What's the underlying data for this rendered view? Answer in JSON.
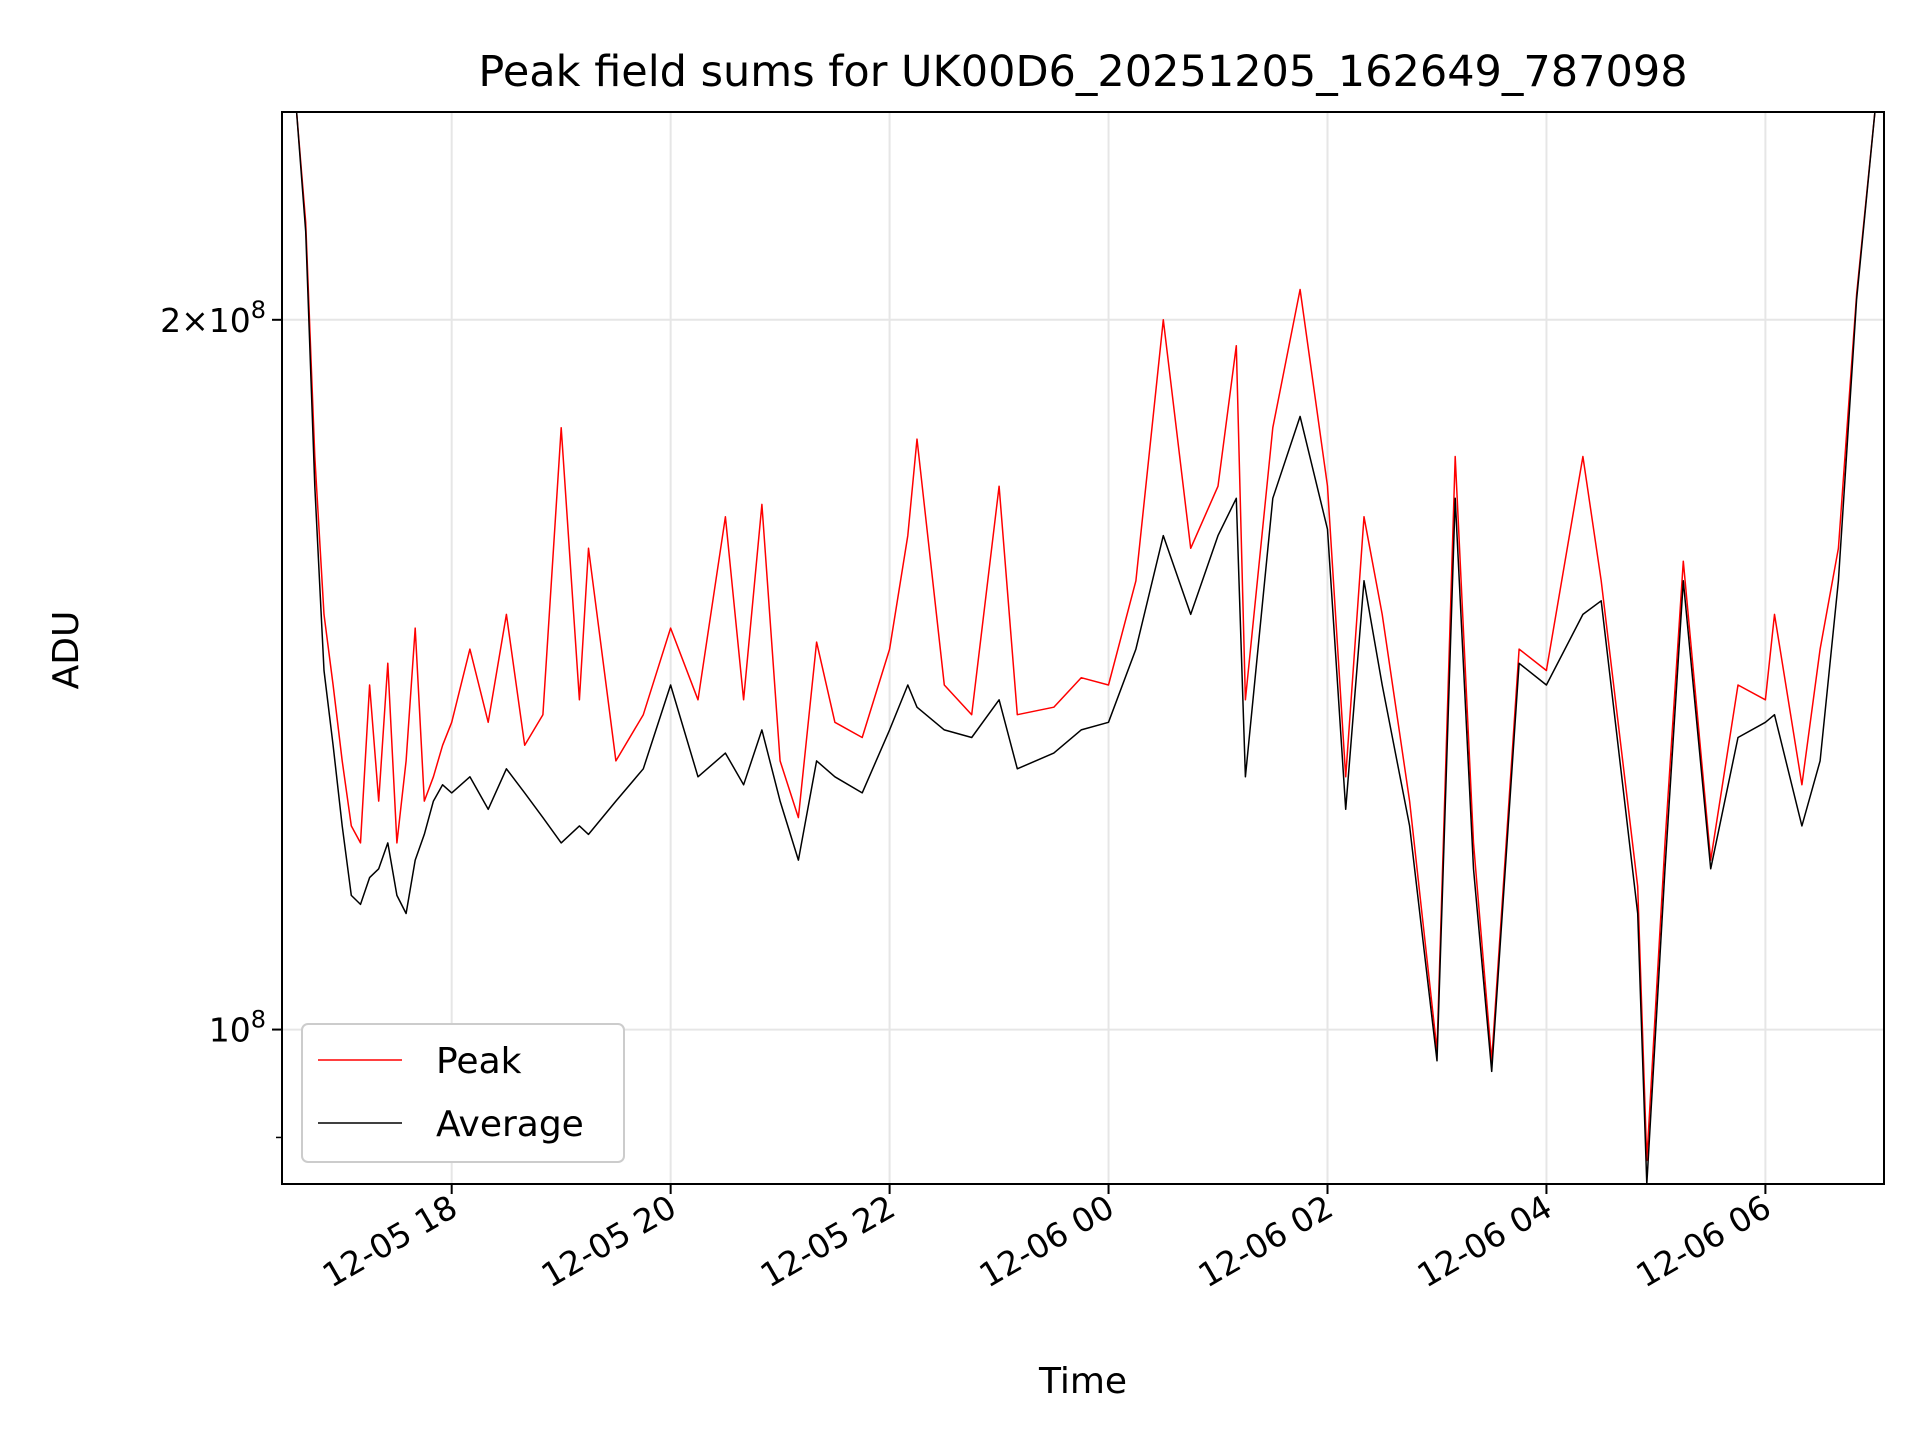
{
  "chart_data": {
    "type": "line",
    "title": "Peak field sums for UK00D6_20251205_162649_787098",
    "xlabel": "Time",
    "ylabel": "ADU",
    "x_range": [
      "2025-12-05 16:27",
      "2025-12-06 07:05"
    ],
    "x_ticks": [
      "12-05 18",
      "12-05 20",
      "12-05 22",
      "12-06 00",
      "12-06 02",
      "12-06 04",
      "12-06 06"
    ],
    "y_scale": "log",
    "ylim": [
      86000000,
      245000000
    ],
    "y_ticks": [
      {
        "value": 100000000,
        "label": "10^8"
      },
      {
        "value": 200000000,
        "label": "2×10^8"
      }
    ],
    "y_minor_ticks": [
      90000000
    ],
    "grid": true,
    "legend": "lower-left",
    "series": [
      {
        "name": "Peak",
        "color": "#ff0000",
        "points": [
          [
            "2025-12-05 16:35",
            245000000
          ],
          [
            "2025-12-05 16:40",
            220000000
          ],
          [
            "2025-12-05 16:45",
            175000000
          ],
          [
            "2025-12-05 16:50",
            150000000
          ],
          [
            "2025-12-05 16:55",
            140000000
          ],
          [
            "2025-12-05 17:00",
            130000000
          ],
          [
            "2025-12-05 17:05",
            122000000
          ],
          [
            "2025-12-05 17:10",
            120000000
          ],
          [
            "2025-12-05 17:15",
            140000000
          ],
          [
            "2025-12-05 17:20",
            125000000
          ],
          [
            "2025-12-05 17:25",
            143000000
          ],
          [
            "2025-12-05 17:30",
            120000000
          ],
          [
            "2025-12-05 17:35",
            130000000
          ],
          [
            "2025-12-05 17:40",
            148000000
          ],
          [
            "2025-12-05 17:45",
            125000000
          ],
          [
            "2025-12-05 17:50",
            128000000
          ],
          [
            "2025-12-05 17:55",
            132000000
          ],
          [
            "2025-12-05 18:00",
            135000000
          ],
          [
            "2025-12-05 18:10",
            145000000
          ],
          [
            "2025-12-05 18:20",
            135000000
          ],
          [
            "2025-12-05 18:30",
            150000000
          ],
          [
            "2025-12-05 18:40",
            132000000
          ],
          [
            "2025-12-05 18:50",
            136000000
          ],
          [
            "2025-12-05 19:00",
            180000000
          ],
          [
            "2025-12-05 19:10",
            138000000
          ],
          [
            "2025-12-05 19:15",
            160000000
          ],
          [
            "2025-12-05 19:30",
            130000000
          ],
          [
            "2025-12-05 19:45",
            136000000
          ],
          [
            "2025-12-05 20:00",
            148000000
          ],
          [
            "2025-12-05 20:15",
            138000000
          ],
          [
            "2025-12-05 20:30",
            165000000
          ],
          [
            "2025-12-05 20:40",
            138000000
          ],
          [
            "2025-12-05 20:50",
            167000000
          ],
          [
            "2025-12-05 21:00",
            130000000
          ],
          [
            "2025-12-05 21:10",
            123000000
          ],
          [
            "2025-12-05 21:20",
            146000000
          ],
          [
            "2025-12-05 21:30",
            135000000
          ],
          [
            "2025-12-05 21:45",
            133000000
          ],
          [
            "2025-12-05 22:00",
            145000000
          ],
          [
            "2025-12-05 22:10",
            162000000
          ],
          [
            "2025-12-05 22:15",
            178000000
          ],
          [
            "2025-12-05 22:30",
            140000000
          ],
          [
            "2025-12-05 22:45",
            136000000
          ],
          [
            "2025-12-05 23:00",
            170000000
          ],
          [
            "2025-12-05 23:10",
            136000000
          ],
          [
            "2025-12-05 23:30",
            137000000
          ],
          [
            "2025-12-05 23:45",
            141000000
          ],
          [
            "2025-12-06 00:00",
            140000000
          ],
          [
            "2025-12-06 00:15",
            155000000
          ],
          [
            "2025-12-06 00:30",
            200000000
          ],
          [
            "2025-12-06 00:45",
            160000000
          ],
          [
            "2025-12-06 01:00",
            170000000
          ],
          [
            "2025-12-06 01:10",
            195000000
          ],
          [
            "2025-12-06 01:15",
            138000000
          ],
          [
            "2025-12-06 01:30",
            180000000
          ],
          [
            "2025-12-06 01:45",
            206000000
          ],
          [
            "2025-12-06 02:00",
            170000000
          ],
          [
            "2025-12-06 02:10",
            128000000
          ],
          [
            "2025-12-06 02:20",
            165000000
          ],
          [
            "2025-12-06 02:30",
            150000000
          ],
          [
            "2025-12-06 02:45",
            125000000
          ],
          [
            "2025-12-06 03:00",
            98000000
          ],
          [
            "2025-12-06 03:10",
            175000000
          ],
          [
            "2025-12-06 03:20",
            120000000
          ],
          [
            "2025-12-06 03:30",
            97000000
          ],
          [
            "2025-12-06 03:45",
            145000000
          ],
          [
            "2025-12-06 04:00",
            142000000
          ],
          [
            "2025-12-06 04:20",
            175000000
          ],
          [
            "2025-12-06 04:30",
            155000000
          ],
          [
            "2025-12-06 04:50",
            115000000
          ],
          [
            "2025-12-06 04:55",
            88000000
          ],
          [
            "2025-12-06 05:05",
            120000000
          ],
          [
            "2025-12-06 05:15",
            158000000
          ],
          [
            "2025-12-06 05:30",
            118000000
          ],
          [
            "2025-12-06 05:45",
            140000000
          ],
          [
            "2025-12-06 06:00",
            138000000
          ],
          [
            "2025-12-06 06:05",
            150000000
          ],
          [
            "2025-12-06 06:20",
            127000000
          ],
          [
            "2025-12-06 06:30",
            145000000
          ],
          [
            "2025-12-06 06:40",
            160000000
          ],
          [
            "2025-12-06 06:50",
            205000000
          ],
          [
            "2025-12-06 07:00",
            245000000
          ]
        ]
      },
      {
        "name": "Average",
        "color": "#000000",
        "points": [
          [
            "2025-12-05 16:35",
            245000000
          ],
          [
            "2025-12-05 16:40",
            218000000
          ],
          [
            "2025-12-05 16:45",
            170000000
          ],
          [
            "2025-12-05 16:50",
            142000000
          ],
          [
            "2025-12-05 16:55",
            132000000
          ],
          [
            "2025-12-05 17:00",
            122000000
          ],
          [
            "2025-12-05 17:05",
            114000000
          ],
          [
            "2025-12-05 17:10",
            113000000
          ],
          [
            "2025-12-05 17:15",
            116000000
          ],
          [
            "2025-12-05 17:20",
            117000000
          ],
          [
            "2025-12-05 17:25",
            120000000
          ],
          [
            "2025-12-05 17:30",
            114000000
          ],
          [
            "2025-12-05 17:35",
            112000000
          ],
          [
            "2025-12-05 17:40",
            118000000
          ],
          [
            "2025-12-05 17:45",
            121000000
          ],
          [
            "2025-12-05 17:50",
            125000000
          ],
          [
            "2025-12-05 17:55",
            127000000
          ],
          [
            "2025-12-05 18:00",
            126000000
          ],
          [
            "2025-12-05 18:10",
            128000000
          ],
          [
            "2025-12-05 18:20",
            124000000
          ],
          [
            "2025-12-05 18:30",
            129000000
          ],
          [
            "2025-12-05 18:40",
            126000000
          ],
          [
            "2025-12-05 18:50",
            123000000
          ],
          [
            "2025-12-05 19:00",
            120000000
          ],
          [
            "2025-12-05 19:10",
            122000000
          ],
          [
            "2025-12-05 19:15",
            121000000
          ],
          [
            "2025-12-05 19:30",
            125000000
          ],
          [
            "2025-12-05 19:45",
            129000000
          ],
          [
            "2025-12-05 20:00",
            140000000
          ],
          [
            "2025-12-05 20:15",
            128000000
          ],
          [
            "2025-12-05 20:30",
            131000000
          ],
          [
            "2025-12-05 20:40",
            127000000
          ],
          [
            "2025-12-05 20:50",
            134000000
          ],
          [
            "2025-12-05 21:00",
            125000000
          ],
          [
            "2025-12-05 21:10",
            118000000
          ],
          [
            "2025-12-05 21:20",
            130000000
          ],
          [
            "2025-12-05 21:30",
            128000000
          ],
          [
            "2025-12-05 21:45",
            126000000
          ],
          [
            "2025-12-05 22:00",
            134000000
          ],
          [
            "2025-12-05 22:10",
            140000000
          ],
          [
            "2025-12-05 22:15",
            137000000
          ],
          [
            "2025-12-05 22:30",
            134000000
          ],
          [
            "2025-12-05 22:45",
            133000000
          ],
          [
            "2025-12-05 23:00",
            138000000
          ],
          [
            "2025-12-05 23:10",
            129000000
          ],
          [
            "2025-12-05 23:30",
            131000000
          ],
          [
            "2025-12-05 23:45",
            134000000
          ],
          [
            "2025-12-06 00:00",
            135000000
          ],
          [
            "2025-12-06 00:15",
            145000000
          ],
          [
            "2025-12-06 00:30",
            162000000
          ],
          [
            "2025-12-06 00:45",
            150000000
          ],
          [
            "2025-12-06 01:00",
            162000000
          ],
          [
            "2025-12-06 01:10",
            168000000
          ],
          [
            "2025-12-06 01:15",
            128000000
          ],
          [
            "2025-12-06 01:30",
            168000000
          ],
          [
            "2025-12-06 01:45",
            182000000
          ],
          [
            "2025-12-06 02:00",
            163000000
          ],
          [
            "2025-12-06 02:10",
            124000000
          ],
          [
            "2025-12-06 02:20",
            155000000
          ],
          [
            "2025-12-06 02:30",
            140000000
          ],
          [
            "2025-12-06 02:45",
            122000000
          ],
          [
            "2025-12-06 03:00",
            97000000
          ],
          [
            "2025-12-06 03:10",
            168000000
          ],
          [
            "2025-12-06 03:20",
            117000000
          ],
          [
            "2025-12-06 03:30",
            96000000
          ],
          [
            "2025-12-06 03:45",
            143000000
          ],
          [
            "2025-12-06 04:00",
            140000000
          ],
          [
            "2025-12-06 04:20",
            150000000
          ],
          [
            "2025-12-06 04:30",
            152000000
          ],
          [
            "2025-12-06 04:50",
            112000000
          ],
          [
            "2025-12-06 04:55",
            86000000
          ],
          [
            "2025-12-06 05:05",
            117000000
          ],
          [
            "2025-12-06 05:15",
            155000000
          ],
          [
            "2025-12-06 05:30",
            117000000
          ],
          [
            "2025-12-06 05:45",
            133000000
          ],
          [
            "2025-12-06 06:00",
            135000000
          ],
          [
            "2025-12-06 06:05",
            136000000
          ],
          [
            "2025-12-06 06:20",
            122000000
          ],
          [
            "2025-12-06 06:30",
            130000000
          ],
          [
            "2025-12-06 06:40",
            155000000
          ],
          [
            "2025-12-06 06:50",
            204000000
          ],
          [
            "2025-12-06 07:00",
            245000000
          ]
        ]
      }
    ]
  }
}
